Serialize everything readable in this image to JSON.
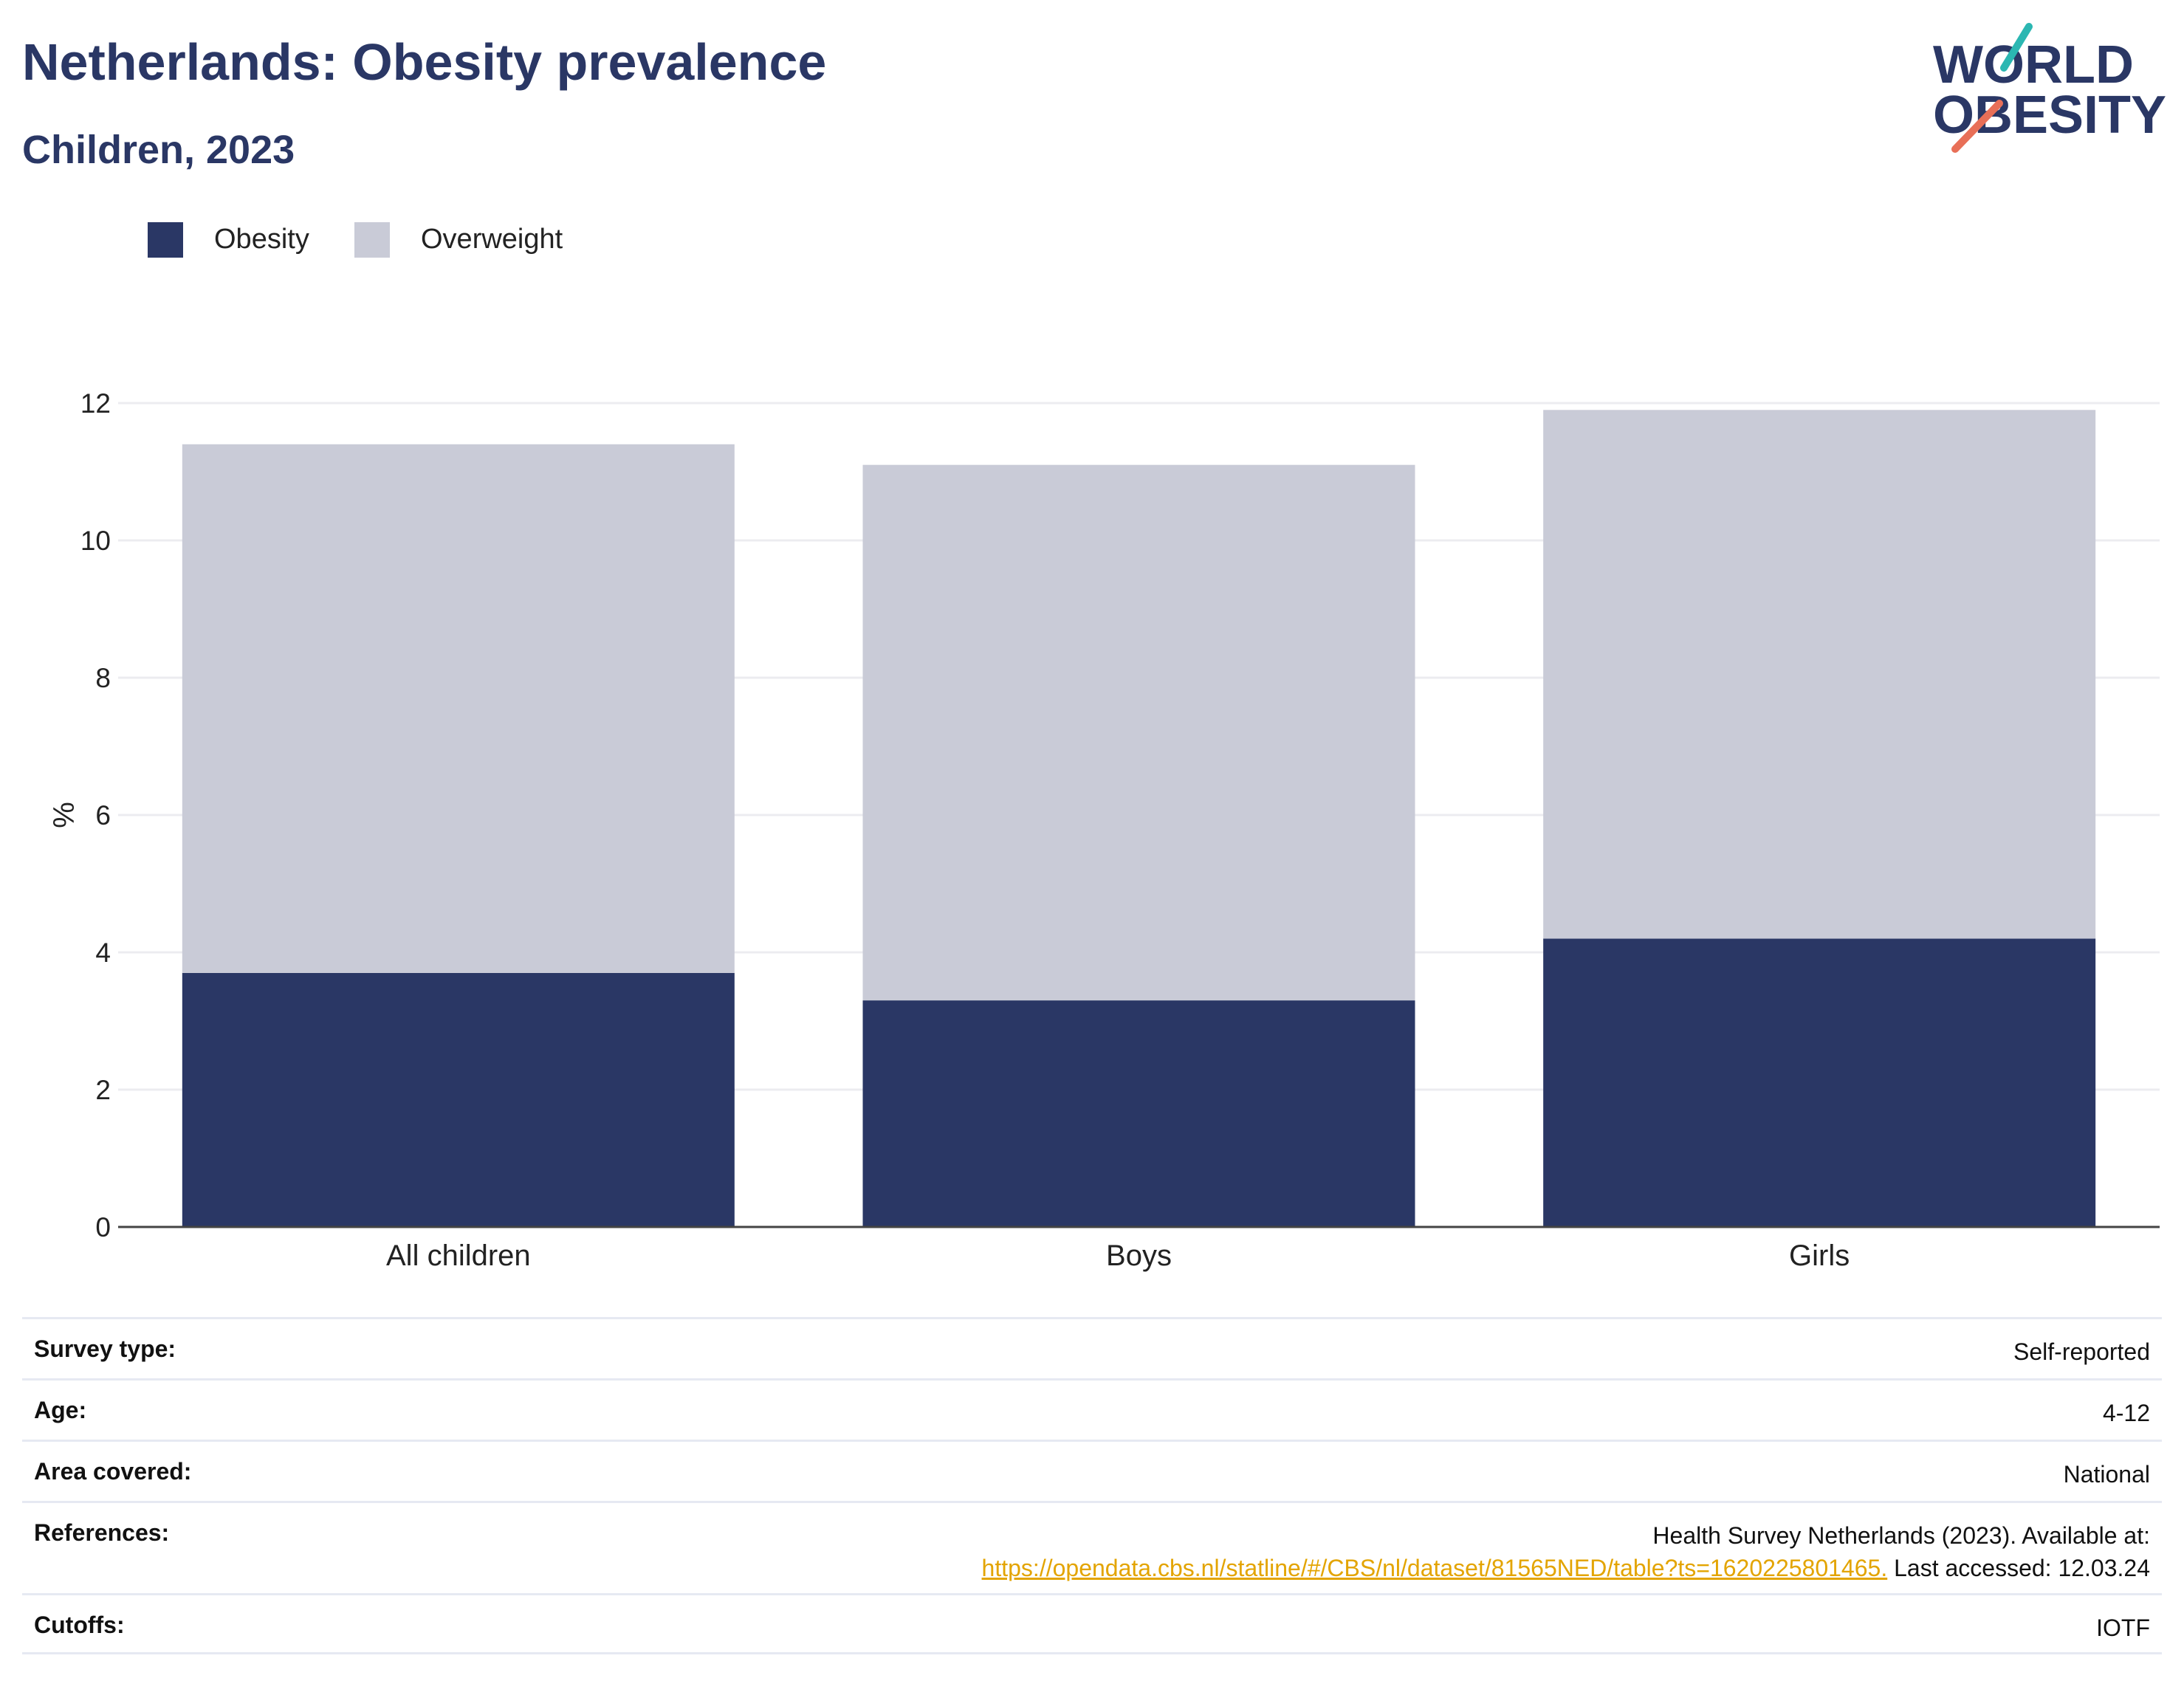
{
  "header": {
    "title": "Netherlands: Obesity prevalence",
    "subtitle": "Children, 2023"
  },
  "logo": {
    "line1": "WORLD",
    "line2": "OBESITY"
  },
  "legend": [
    {
      "label": "Obesity",
      "color": "#2a3765"
    },
    {
      "label": "Overweight",
      "color": "#c9cbd7"
    }
  ],
  "chart_data": {
    "type": "bar",
    "stacked": true,
    "categories": [
      "All children",
      "Boys",
      "Girls"
    ],
    "series": [
      {
        "name": "Obesity",
        "color": "#2a3765",
        "values": [
          3.7,
          3.3,
          4.2
        ]
      },
      {
        "name": "Overweight",
        "color": "#c9cbd7",
        "values": [
          7.7,
          7.8,
          7.7
        ]
      }
    ],
    "ylabel": "%",
    "ylim": [
      0,
      12
    ],
    "yticks": [
      0,
      2,
      4,
      6,
      8,
      10,
      12
    ],
    "grid": true,
    "legend_position": "top-left"
  },
  "info": {
    "survey_type": {
      "label": "Survey type:",
      "value": "Self-reported"
    },
    "age": {
      "label": "Age:",
      "value": "4-12"
    },
    "area": {
      "label": "Area covered:",
      "value": "National"
    },
    "references": {
      "label": "References:",
      "line1": "Health Survey Netherlands (2023). Available at:",
      "link": "https://opendata.cbs.nl/statline/#/CBS/nl/dataset/81565NED/table?ts=1620225801465.",
      "after": " Last accessed: 12.03.24"
    },
    "cutoffs": {
      "label": "Cutoffs:",
      "value": "IOTF"
    }
  }
}
